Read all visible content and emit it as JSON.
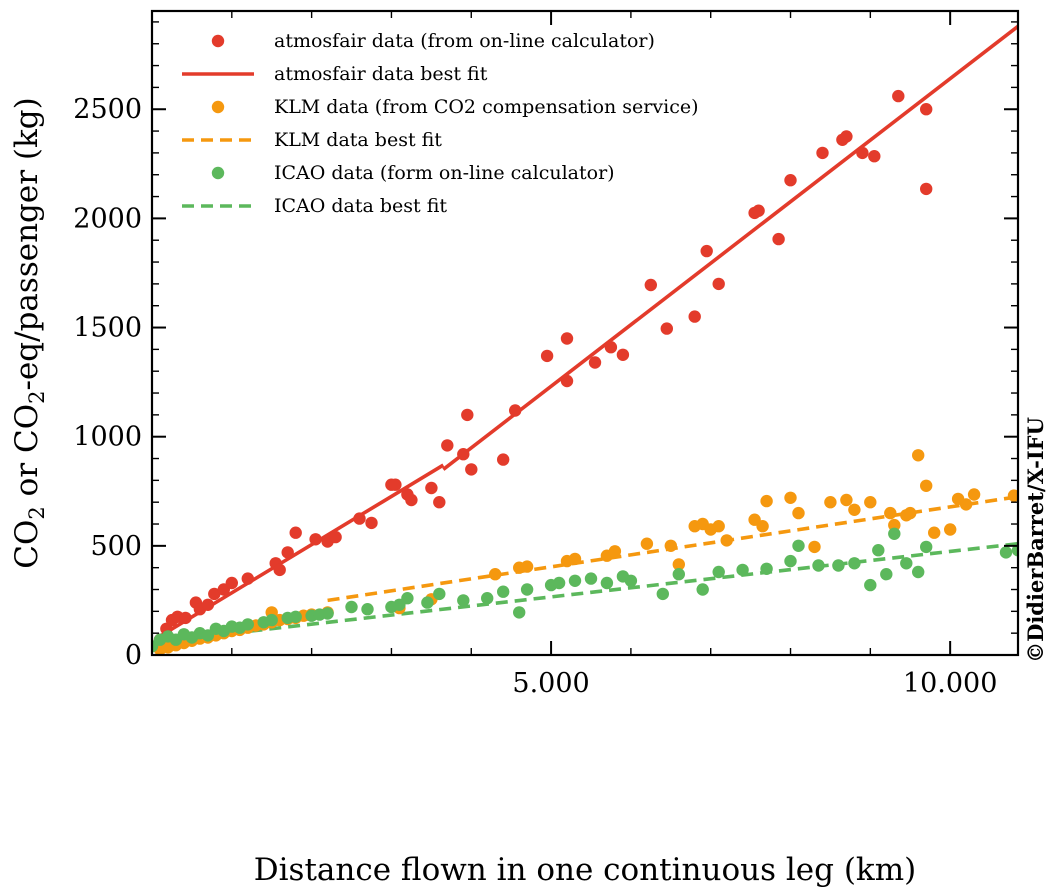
{
  "chart_data": {
    "type": "scatter",
    "title": "",
    "xlabel": "Distance flown in one continuous leg (km)",
    "ylabel": {
      "pre": "CO",
      "sub1": "2",
      "mid": " or CO",
      "sub2": "2",
      "post": "-eq/passenger (kg)"
    },
    "xlim": [
      0,
      10850
    ],
    "ylim": [
      0,
      2950
    ],
    "xticks": [
      5000,
      10000
    ],
    "xtick_labels": [
      "5.000",
      "10.000"
    ],
    "yticks": [
      0,
      500,
      1000,
      1500,
      2000,
      2500
    ],
    "ytick_labels": [
      "0",
      "500",
      "1000",
      "1500",
      "2000",
      "2500"
    ],
    "grid": false,
    "legend_position": "top-left",
    "credit": "©DidierBarret/X-IFU",
    "colors": {
      "atmosfair": "#e33b2b",
      "klm": "#f5980f",
      "icao": "#5cb85c"
    },
    "series": [
      {
        "name": "atmosfair data (from on-line calculator)",
        "kind": "scatter",
        "color": "#e33b2b",
        "points": [
          [
            100,
            70
          ],
          [
            180,
            120
          ],
          [
            250,
            160
          ],
          [
            320,
            175
          ],
          [
            420,
            170
          ],
          [
            550,
            240
          ],
          [
            600,
            210
          ],
          [
            700,
            230
          ],
          [
            780,
            280
          ],
          [
            900,
            300
          ],
          [
            1000,
            330
          ],
          [
            1200,
            350
          ],
          [
            1550,
            420
          ],
          [
            1600,
            390
          ],
          [
            1700,
            470
          ],
          [
            1800,
            560
          ],
          [
            2050,
            530
          ],
          [
            2200,
            520
          ],
          [
            2300,
            540
          ],
          [
            2600,
            625
          ],
          [
            2750,
            605
          ],
          [
            3000,
            780
          ],
          [
            3050,
            780
          ],
          [
            3200,
            735
          ],
          [
            3250,
            710
          ],
          [
            3500,
            765
          ],
          [
            3600,
            700
          ],
          [
            3700,
            960
          ],
          [
            3900,
            920
          ],
          [
            3950,
            1100
          ],
          [
            4000,
            850
          ],
          [
            4400,
            895
          ],
          [
            4550,
            1120
          ],
          [
            4950,
            1370
          ],
          [
            5200,
            1450
          ],
          [
            5200,
            1255
          ],
          [
            5550,
            1340
          ],
          [
            5750,
            1410
          ],
          [
            5900,
            1375
          ],
          [
            6250,
            1695
          ],
          [
            6450,
            1495
          ],
          [
            6800,
            1550
          ],
          [
            6950,
            1850
          ],
          [
            7100,
            1700
          ],
          [
            7550,
            2025
          ],
          [
            7600,
            2035
          ],
          [
            7850,
            1905
          ],
          [
            8000,
            2175
          ],
          [
            8400,
            2300
          ],
          [
            8650,
            2360
          ],
          [
            8700,
            2375
          ],
          [
            8900,
            2300
          ],
          [
            9050,
            2285
          ],
          [
            9350,
            2560
          ],
          [
            9700,
            2500
          ],
          [
            9700,
            2135
          ]
        ]
      },
      {
        "name": "atmosfair data best fit",
        "kind": "line",
        "style": "solid",
        "color": "#e33b2b",
        "segments": [
          [
            [
              50,
              75
            ],
            [
              3650,
              870
            ]
          ],
          [
            [
              3650,
              850
            ],
            [
              10850,
              2880
            ]
          ]
        ]
      },
      {
        "name": "KLM data (from CO2 compensation service)",
        "kind": "scatter",
        "color": "#f5980f",
        "points": [
          [
            100,
            25
          ],
          [
            200,
            35
          ],
          [
            300,
            45
          ],
          [
            400,
            55
          ],
          [
            500,
            65
          ],
          [
            600,
            75
          ],
          [
            700,
            80
          ],
          [
            800,
            90
          ],
          [
            900,
            100
          ],
          [
            1000,
            110
          ],
          [
            1100,
            115
          ],
          [
            1200,
            125
          ],
          [
            1300,
            135
          ],
          [
            1400,
            140
          ],
          [
            1500,
            150
          ],
          [
            1600,
            160
          ],
          [
            1700,
            165
          ],
          [
            1800,
            170
          ],
          [
            1900,
            180
          ],
          [
            2000,
            185
          ],
          [
            2200,
            195
          ],
          [
            1500,
            195
          ],
          [
            3100,
            215
          ],
          [
            3500,
            255
          ],
          [
            4300,
            370
          ],
          [
            4600,
            400
          ],
          [
            4700,
            405
          ],
          [
            5200,
            430
          ],
          [
            5300,
            440
          ],
          [
            5700,
            455
          ],
          [
            5800,
            475
          ],
          [
            6200,
            510
          ],
          [
            6500,
            500
          ],
          [
            6600,
            415
          ],
          [
            6800,
            590
          ],
          [
            6900,
            600
          ],
          [
            7000,
            575
          ],
          [
            7100,
            590
          ],
          [
            7200,
            525
          ],
          [
            7550,
            620
          ],
          [
            7650,
            590
          ],
          [
            7700,
            705
          ],
          [
            8000,
            720
          ],
          [
            8100,
            650
          ],
          [
            8300,
            495
          ],
          [
            8500,
            700
          ],
          [
            8700,
            710
          ],
          [
            8800,
            665
          ],
          [
            9000,
            700
          ],
          [
            9250,
            650
          ],
          [
            9300,
            595
          ],
          [
            9450,
            640
          ],
          [
            9500,
            650
          ],
          [
            9600,
            915
          ],
          [
            9700,
            775
          ],
          [
            9800,
            560
          ],
          [
            10000,
            575
          ],
          [
            10100,
            715
          ],
          [
            10200,
            690
          ],
          [
            10300,
            735
          ],
          [
            10800,
            730
          ]
        ]
      },
      {
        "name": "KLM data best fit",
        "kind": "line",
        "style": "dashed",
        "color": "#f5980f",
        "segments": [
          [
            [
              50,
              50
            ],
            [
              2200,
              180
            ]
          ],
          [
            [
              2200,
              250
            ],
            [
              10850,
              725
            ]
          ]
        ]
      },
      {
        "name": "ICAO data (form on-line calculator)",
        "kind": "scatter",
        "color": "#5cb85c",
        "points": [
          [
            0,
            40
          ],
          [
            100,
            70
          ],
          [
            200,
            85
          ],
          [
            300,
            70
          ],
          [
            400,
            95
          ],
          [
            500,
            80
          ],
          [
            600,
            100
          ],
          [
            700,
            90
          ],
          [
            800,
            120
          ],
          [
            900,
            110
          ],
          [
            1000,
            130
          ],
          [
            1100,
            125
          ],
          [
            1200,
            140
          ],
          [
            1400,
            150
          ],
          [
            1500,
            160
          ],
          [
            1700,
            170
          ],
          [
            1800,
            175
          ],
          [
            2000,
            180
          ],
          [
            2100,
            185
          ],
          [
            2200,
            190
          ],
          [
            2500,
            220
          ],
          [
            2700,
            210
          ],
          [
            3000,
            220
          ],
          [
            3100,
            230
          ],
          [
            3200,
            260
          ],
          [
            3450,
            240
          ],
          [
            3600,
            280
          ],
          [
            3900,
            250
          ],
          [
            4200,
            260
          ],
          [
            4400,
            290
          ],
          [
            4600,
            195
          ],
          [
            4700,
            300
          ],
          [
            5000,
            320
          ],
          [
            5100,
            330
          ],
          [
            5300,
            340
          ],
          [
            5500,
            350
          ],
          [
            5700,
            330
          ],
          [
            5900,
            360
          ],
          [
            6000,
            340
          ],
          [
            6400,
            280
          ],
          [
            6600,
            370
          ],
          [
            6900,
            300
          ],
          [
            7100,
            380
          ],
          [
            7400,
            390
          ],
          [
            7700,
            395
          ],
          [
            8000,
            430
          ],
          [
            8100,
            500
          ],
          [
            8350,
            410
          ],
          [
            8600,
            410
          ],
          [
            8800,
            420
          ],
          [
            9000,
            320
          ],
          [
            9100,
            480
          ],
          [
            9200,
            370
          ],
          [
            9300,
            555
          ],
          [
            9450,
            420
          ],
          [
            9600,
            380
          ],
          [
            9700,
            495
          ],
          [
            10700,
            470
          ],
          [
            10850,
            480
          ]
        ]
      },
      {
        "name": "ICAO data best fit",
        "kind": "line",
        "style": "dashed",
        "color": "#5cb85c",
        "segments": [
          [
            [
              50,
              60
            ],
            [
              10850,
              510
            ]
          ]
        ]
      }
    ]
  }
}
